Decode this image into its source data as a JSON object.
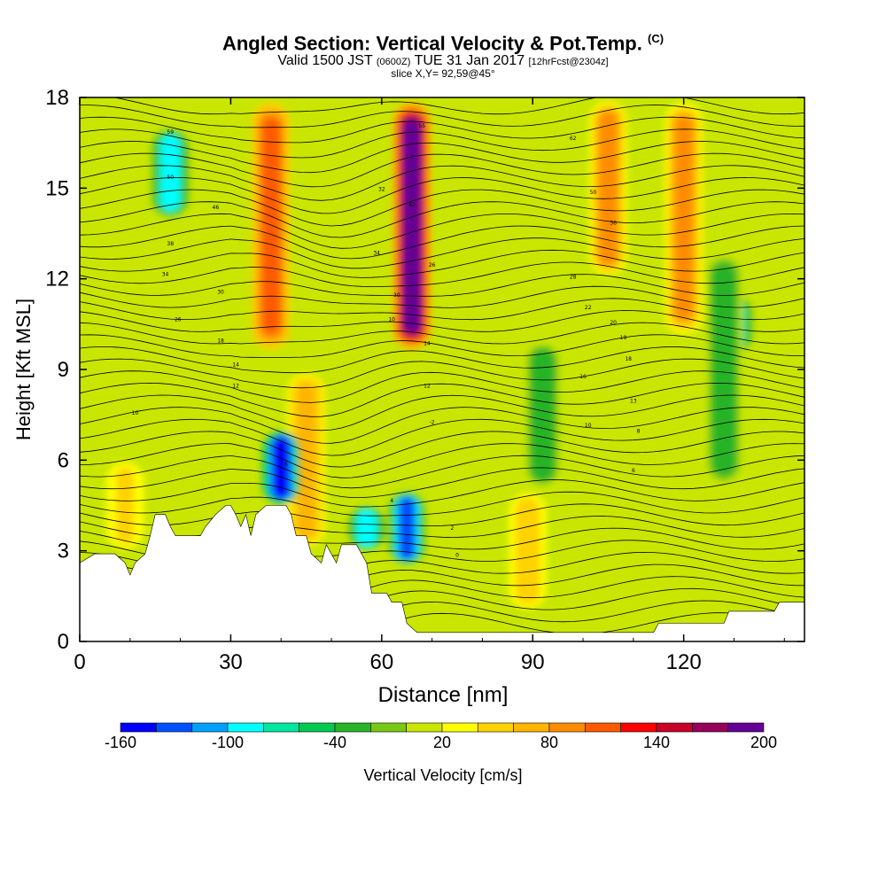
{
  "chart_data": {
    "type": "heatmap",
    "title": "Angled Section: Vertical Velocity & Pot.Temp.",
    "title_mark": "(C)",
    "subtitle": {
      "valid": "Valid 1500 JST",
      "utc": "(0600Z)",
      "date": "TUE 31 Jan 2017",
      "forecast": "[12hrFcst@2304z]"
    },
    "slice": "slice X,Y= 92,59@45°",
    "xlabel": "Distance [nm]",
    "ylabel": "Height [Kft MSL]",
    "xlim": [
      0,
      144
    ],
    "ylim": [
      0,
      18
    ],
    "xticks": [
      "0",
      "30",
      "60",
      "90",
      "120"
    ],
    "yticks": [
      "0",
      "3",
      "6",
      "9",
      "12",
      "15",
      "18"
    ],
    "colorbar": {
      "label": "Vertical Velocity [cm/s]",
      "ticks": [
        "-160",
        "-100",
        "-40",
        "20",
        "80",
        "140",
        "200"
      ],
      "range": [
        -160,
        200
      ],
      "colors": [
        "#0000ff",
        "#0050ff",
        "#00a0ff",
        "#00ffff",
        "#00e8a0",
        "#00c850",
        "#28b428",
        "#78c818",
        "#c8e600",
        "#ffff00",
        "#ffd200",
        "#ffb400",
        "#ff8c00",
        "#ff5a00",
        "#ff0000",
        "#c80028",
        "#96005a",
        "#640096"
      ]
    },
    "velocity_features": [
      {
        "x": 66,
        "z_range": [
          9.5,
          18
        ],
        "w": 200,
        "kind": "updraft"
      },
      {
        "x": 38,
        "z_range": [
          9.5,
          18
        ],
        "w": 100,
        "kind": "updraft"
      },
      {
        "x": 105,
        "z_range": [
          12,
          18
        ],
        "w": 90,
        "kind": "updraft"
      },
      {
        "x": 120,
        "z_range": [
          10,
          18
        ],
        "w": 80,
        "kind": "updraft"
      },
      {
        "x": 45,
        "z_range": [
          3,
          9
        ],
        "w": 60,
        "kind": "updraft"
      },
      {
        "x": 9,
        "z_range": [
          3,
          6
        ],
        "w": 40,
        "kind": "updraft"
      },
      {
        "x": 89,
        "z_range": [
          1,
          5
        ],
        "w": 50,
        "kind": "updraft"
      },
      {
        "x": 40,
        "z_range": [
          4.5,
          7
        ],
        "w": -160,
        "kind": "downdraft"
      },
      {
        "x": 65,
        "z_range": [
          2.5,
          5
        ],
        "w": -130,
        "kind": "downdraft"
      },
      {
        "x": 57,
        "z_range": [
          3,
          4.5
        ],
        "w": -100,
        "kind": "downdraft"
      },
      {
        "x": 18,
        "z_range": [
          14,
          17
        ],
        "w": -100,
        "kind": "downdraft"
      },
      {
        "x": 130,
        "z_range": [
          9.5,
          11.5
        ],
        "w": -90,
        "kind": "downdraft"
      },
      {
        "x": 92,
        "z_range": [
          5,
          10
        ],
        "w": -40,
        "kind": "downdraft"
      },
      {
        "x": 128,
        "z_range": [
          5,
          13
        ],
        "w": -40,
        "kind": "downdraft"
      }
    ],
    "terrain": [
      {
        "x": 0,
        "h": 2.6
      },
      {
        "x": 3,
        "h": 2.9
      },
      {
        "x": 7,
        "h": 2.9
      },
      {
        "x": 9,
        "h": 2.6
      },
      {
        "x": 10,
        "h": 2.2
      },
      {
        "x": 11,
        "h": 2.6
      },
      {
        "x": 13,
        "h": 2.9
      },
      {
        "x": 14,
        "h": 3.5
      },
      {
        "x": 15,
        "h": 4.2
      },
      {
        "x": 17,
        "h": 4.2
      },
      {
        "x": 18,
        "h": 3.8
      },
      {
        "x": 19,
        "h": 3.5
      },
      {
        "x": 20,
        "h": 3.5
      },
      {
        "x": 24,
        "h": 3.5
      },
      {
        "x": 25,
        "h": 3.8
      },
      {
        "x": 27,
        "h": 4.2
      },
      {
        "x": 29,
        "h": 4.5
      },
      {
        "x": 30,
        "h": 4.5
      },
      {
        "x": 31,
        "h": 4.2
      },
      {
        "x": 32,
        "h": 3.8
      },
      {
        "x": 33,
        "h": 4.2
      },
      {
        "x": 34,
        "h": 3.5
      },
      {
        "x": 35,
        "h": 4.2
      },
      {
        "x": 37,
        "h": 4.5
      },
      {
        "x": 41,
        "h": 4.5
      },
      {
        "x": 42,
        "h": 4.2
      },
      {
        "x": 43,
        "h": 3.5
      },
      {
        "x": 45,
        "h": 3.5
      },
      {
        "x": 46,
        "h": 2.9
      },
      {
        "x": 48,
        "h": 2.6
      },
      {
        "x": 49,
        "h": 3.2
      },
      {
        "x": 50,
        "h": 2.9
      },
      {
        "x": 51,
        "h": 2.6
      },
      {
        "x": 52,
        "h": 3.2
      },
      {
        "x": 55,
        "h": 3.2
      },
      {
        "x": 56,
        "h": 2.9
      },
      {
        "x": 57,
        "h": 2.6
      },
      {
        "x": 58,
        "h": 1.6
      },
      {
        "x": 61,
        "h": 1.6
      },
      {
        "x": 62,
        "h": 1.3
      },
      {
        "x": 64,
        "h": 1.3
      },
      {
        "x": 65,
        "h": 0.6
      },
      {
        "x": 67,
        "h": 0.3
      },
      {
        "x": 114,
        "h": 0.3
      },
      {
        "x": 115,
        "h": 0.6
      },
      {
        "x": 128,
        "h": 0.6
      },
      {
        "x": 129,
        "h": 1.0
      },
      {
        "x": 138,
        "h": 1.0
      },
      {
        "x": 139,
        "h": 1.3
      },
      {
        "x": 144,
        "h": 1.3
      }
    ],
    "theta_contour_labels": [
      {
        "text": "59",
        "x": 18,
        "z": 16.8
      },
      {
        "text": "50",
        "x": 18,
        "z": 15.3
      },
      {
        "text": "46",
        "x": 27,
        "z": 14.3
      },
      {
        "text": "38",
        "x": 18,
        "z": 13.1
      },
      {
        "text": "34",
        "x": 17,
        "z": 12.1
      },
      {
        "text": "30",
        "x": 28,
        "z": 11.5
      },
      {
        "text": "26",
        "x": 19.5,
        "z": 10.6
      },
      {
        "text": "18",
        "x": 28,
        "z": 9.9
      },
      {
        "text": "14",
        "x": 31,
        "z": 9.1
      },
      {
        "text": "12",
        "x": 31,
        "z": 8.4
      },
      {
        "text": "10",
        "x": 11,
        "z": 7.5
      },
      {
        "text": "6",
        "x": 41,
        "z": 5.8
      },
      {
        "text": "4",
        "x": 62,
        "z": 4.6
      },
      {
        "text": "2",
        "x": 74,
        "z": 3.7
      },
      {
        "text": "0",
        "x": 75,
        "z": 2.8
      },
      {
        "text": "-2",
        "x": 70,
        "z": 7.2
      },
      {
        "text": "32",
        "x": 60,
        "z": 14.9
      },
      {
        "text": "34",
        "x": 59,
        "z": 12.8
      },
      {
        "text": "42",
        "x": 66,
        "z": 14.4
      },
      {
        "text": "55",
        "x": 68,
        "z": 17.0
      },
      {
        "text": "26",
        "x": 70,
        "z": 12.4
      },
      {
        "text": "30",
        "x": 63,
        "z": 11.4
      },
      {
        "text": "10",
        "x": 62,
        "z": 10.6
      },
      {
        "text": "14",
        "x": 69,
        "z": 9.8
      },
      {
        "text": "12",
        "x": 69,
        "z": 8.4
      },
      {
        "text": "62",
        "x": 98,
        "z": 16.6
      },
      {
        "text": "50",
        "x": 102,
        "z": 14.8
      },
      {
        "text": "36",
        "x": 106,
        "z": 13.8
      },
      {
        "text": "28",
        "x": 98,
        "z": 12.0
      },
      {
        "text": "22",
        "x": 101,
        "z": 11.0
      },
      {
        "text": "20",
        "x": 106,
        "z": 10.5
      },
      {
        "text": "19",
        "x": 108,
        "z": 10.0
      },
      {
        "text": "18",
        "x": 109,
        "z": 9.3
      },
      {
        "text": "16",
        "x": 100,
        "z": 8.7
      },
      {
        "text": "13",
        "x": 110,
        "z": 7.9
      },
      {
        "text": "10",
        "x": 101,
        "z": 7.1
      },
      {
        "text": "8",
        "x": 111,
        "z": 6.9
      },
      {
        "text": "6",
        "x": 110,
        "z": 5.6
      }
    ]
  }
}
